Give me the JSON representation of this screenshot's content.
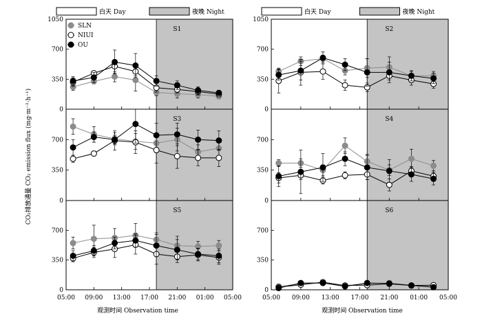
{
  "chart_data": {
    "type": "line",
    "ylabel": "CO₂排放通量 CO₂ emission flux (mg·m⁻²·h⁻¹)",
    "xlabel": "观测时间 Observation time",
    "x_ticks": [
      "05:00",
      "09:00",
      "13:00",
      "17:00",
      "21:00",
      "01:00",
      "05:00"
    ],
    "y_ticks": [
      0,
      350,
      700,
      1050
    ],
    "ylim": [
      0,
      1050
    ],
    "x_range_hours": [
      5,
      29
    ],
    "night_start_hour": 18,
    "day_label": "白天 Day",
    "night_label": "夜晚 Night",
    "times": [
      6,
      9,
      12,
      15,
      18,
      21,
      24,
      27
    ],
    "series_names": [
      "SLN",
      "NIUI",
      "OU"
    ],
    "series_colors": {
      "SLN": "#8c8c8c",
      "NIUI": "#ffffff",
      "OU": "#000000"
    },
    "night_color": "#c4c4c4",
    "panels": [
      {
        "label": "S1",
        "series": [
          {
            "name": "SLN",
            "values": [
              260,
              325,
              380,
              340,
              195,
              180,
              170,
              150
            ],
            "err": [
              40,
              30,
              60,
              130,
              40,
              50,
              40,
              30
            ]
          },
          {
            "name": "NIUI",
            "values": [
              315,
              420,
              500,
              440,
              250,
              230,
              205,
              175
            ],
            "err": [
              50,
              30,
              80,
              50,
              50,
              40,
              40,
              30
            ]
          },
          {
            "name": "OU",
            "values": [
              330,
              370,
              550,
              510,
              330,
              280,
              220,
              190
            ],
            "err": [
              50,
              60,
              140,
              140,
              60,
              50,
              40,
              30
            ]
          }
        ]
      },
      {
        "label": "S2",
        "series": [
          {
            "name": "SLN",
            "values": [
              440,
              560,
              590,
              450,
              480,
              490,
              390,
              390
            ],
            "err": [
              40,
              50,
              40,
              50,
              110,
              120,
              50,
              50
            ]
          },
          {
            "name": "NIUI",
            "values": [
              330,
              430,
              440,
              280,
              255,
              390,
              340,
              295
            ],
            "err": [
              140,
              150,
              90,
              60,
              50,
              50,
              60,
              50
            ]
          },
          {
            "name": "OU",
            "values": [
              400,
              450,
              600,
              520,
              430,
              430,
              390,
              360
            ],
            "err": [
              60,
              110,
              70,
              70,
              160,
              120,
              60,
              60
            ]
          }
        ]
      },
      {
        "label": "S3",
        "series": [
          {
            "name": "SLN",
            "values": [
              850,
              760,
              710,
              680,
              660,
              700,
              560,
              600
            ],
            "err": [
              90,
              90,
              70,
              90,
              110,
              130,
              80,
              100
            ]
          },
          {
            "name": "NIUI",
            "values": [
              480,
              540,
              690,
              670,
              580,
              510,
              490,
              490
            ],
            "err": [
              40,
              30,
              110,
              130,
              150,
              140,
              90,
              100
            ]
          },
          {
            "name": "OU",
            "values": [
              610,
              730,
              700,
              880,
              750,
              760,
              700,
              690
            ],
            "err": [
              90,
              60,
              50,
              220,
              140,
              130,
              110,
              110
            ]
          }
        ]
      },
      {
        "label": "S4",
        "series": [
          {
            "name": "SLN",
            "values": [
              430,
              430,
              350,
              630,
              450,
              350,
              480,
              400
            ],
            "err": [
              40,
              50,
              60,
              90,
              80,
              60,
              110,
              60
            ]
          },
          {
            "name": "NIUI",
            "values": [
              260,
              290,
              230,
              290,
              300,
              180,
              340,
              280
            ],
            "err": [
              60,
              50,
              40,
              40,
              60,
              70,
              50,
              60
            ]
          },
          {
            "name": "OU",
            "values": [
              280,
              330,
              380,
              480,
              380,
              340,
              300,
              250
            ],
            "err": [
              120,
              250,
              160,
              80,
              140,
              130,
              80,
              70
            ]
          }
        ]
      },
      {
        "label": "S5",
        "series": [
          {
            "name": "SLN",
            "values": [
              550,
              600,
              610,
              640,
              590,
              520,
              510,
              520
            ],
            "err": [
              70,
              160,
              110,
              140,
              80,
              110,
              60,
              60
            ]
          },
          {
            "name": "NIUI",
            "values": [
              370,
              440,
              480,
              530,
              420,
              390,
              410,
              380
            ],
            "err": [
              40,
              60,
              100,
              110,
              120,
              70,
              70,
              80
            ]
          },
          {
            "name": "OU",
            "values": [
              400,
              460,
              550,
              580,
              520,
              470,
              420,
              400
            ],
            "err": [
              60,
              60,
              70,
              80,
              130,
              120,
              70,
              80
            ]
          }
        ]
      },
      {
        "label": "S6",
        "series": [
          {
            "name": "SLN",
            "values": [
              40,
              70,
              80,
              50,
              70,
              80,
              55,
              40
            ],
            "err": [
              20,
              20,
              20,
              20,
              20,
              20,
              20,
              20
            ]
          },
          {
            "name": "NIUI",
            "values": [
              30,
              60,
              90,
              50,
              55,
              70,
              50,
              55
            ],
            "err": [
              20,
              20,
              20,
              20,
              20,
              20,
              20,
              20
            ]
          },
          {
            "name": "OU",
            "values": [
              20,
              80,
              80,
              40,
              80,
              75,
              50,
              30
            ],
            "err": [
              20,
              20,
              20,
              20,
              20,
              20,
              20,
              20
            ]
          }
        ]
      }
    ]
  }
}
